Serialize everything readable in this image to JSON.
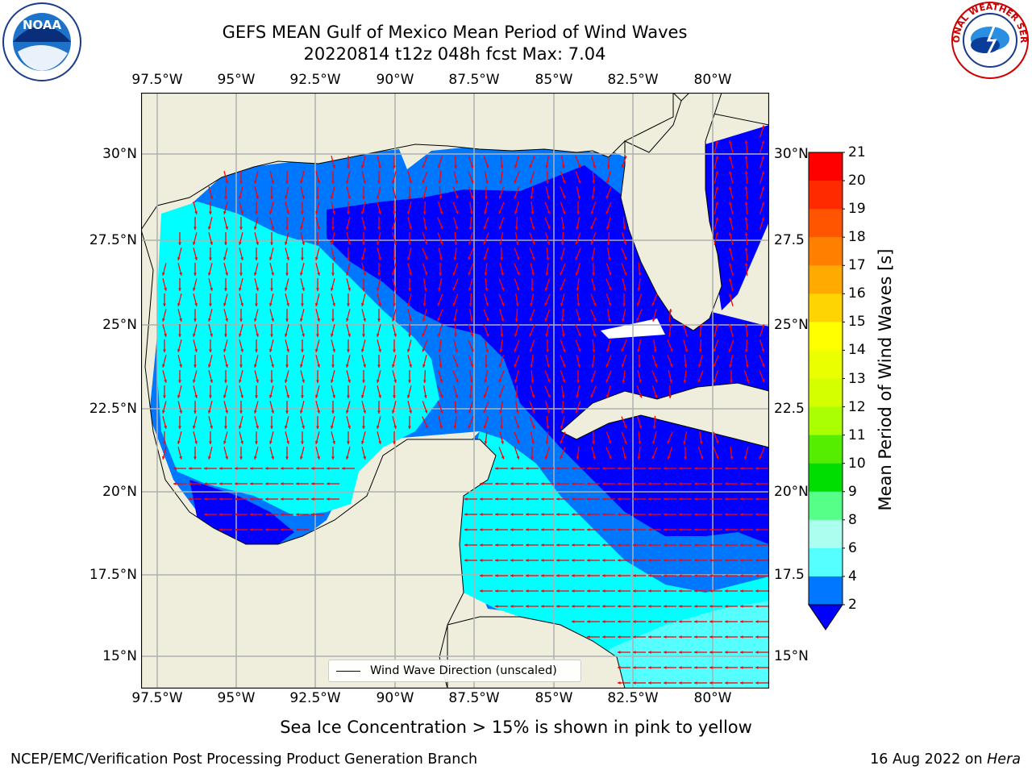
{
  "title_line1": "GEFS MEAN Gulf of Mexico Mean Period of Wind Waves",
  "title_line2": "20220814 t12z 048h fcst   Max: 7.04",
  "lon_ticks": [
    "97.5°W",
    "95°W",
    "92.5°W",
    "90°W",
    "87.5°W",
    "85°W",
    "82.5°W",
    "80°W"
  ],
  "lat_ticks_left": [
    "30°N",
    "27.5°N",
    "25°N",
    "22.5°N",
    "20°N",
    "17.5°N",
    "15°N"
  ],
  "lat_ticks_right": [
    "30°N",
    "27.5",
    "25°N",
    "22.5",
    "20°N",
    "17.5",
    "15°N"
  ],
  "colorbar": {
    "label": "Mean Period of Wind Waves [s]",
    "ticks": [
      "21",
      "20",
      "19",
      "18",
      "17",
      "16",
      "15",
      "14",
      "13",
      "12",
      "11",
      "10",
      "9",
      "8",
      "6",
      "4",
      "2"
    ],
    "colors": [
      "#ff0000",
      "#ff2a00",
      "#ff5500",
      "#ff7f00",
      "#ffaa00",
      "#ffd400",
      "#ffff00",
      "#eaff00",
      "#d4ff00",
      "#aaff00",
      "#55ee00",
      "#00dd00",
      "#55ff88",
      "#aaffee",
      "#55ffff",
      "#00ffff",
      "#0077ff"
    ],
    "extend_color": "#0000ff"
  },
  "legend_label": "Wind Wave Direction (unscaled)",
  "note": "Sea Ice Concentration > 15% is shown in pink to yellow",
  "footer_left": "NCEP/EMC/Verification Post Processing Product Generation Branch",
  "footer_right_date": "16 Aug 2022 on ",
  "footer_right_host": "Hera",
  "map_colors": {
    "land": "#efeedd",
    "cyan": "#00ffff",
    "light_cyan": "#55ffff",
    "mid_blue": "#0077ff",
    "deep_blue": "#0000ff",
    "arrow": "#ff0000",
    "grid": "#b0b0b0"
  },
  "logos": {
    "left": "NOAA",
    "right": "NATIONAL WEATHER SERVICE"
  }
}
